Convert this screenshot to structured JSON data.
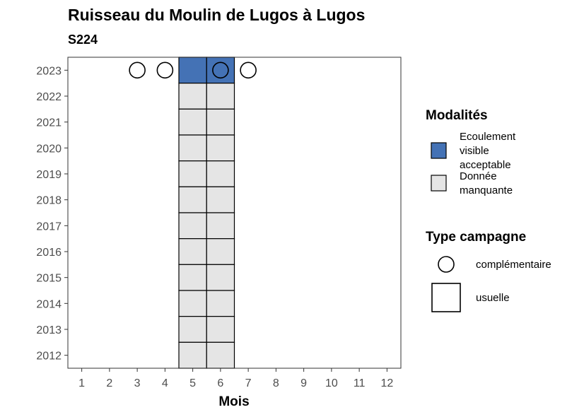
{
  "chart_data": {
    "type": "heatmap",
    "title": "Ruisseau du Moulin de Lugos à Lugos",
    "subtitle": "S224",
    "xlabel": "Mois",
    "ylabel": "",
    "x_ticks": [
      "1",
      "2",
      "3",
      "4",
      "5",
      "6",
      "7",
      "8",
      "9",
      "10",
      "11",
      "12"
    ],
    "y_ticks": [
      "2012",
      "2013",
      "2014",
      "2015",
      "2016",
      "2017",
      "2018",
      "2019",
      "2020",
      "2021",
      "2022",
      "2023"
    ],
    "xlim": [
      0.5,
      12.5
    ],
    "ylim": [
      2011.5,
      2023.5
    ],
    "grid": false,
    "legend_position": "right",
    "modalites": {
      "title": "Modalités",
      "items": [
        {
          "label_lines": [
            "Ecoulement",
            "visible",
            "acceptable"
          ],
          "color": "#4472b5"
        },
        {
          "label_lines": [
            "Donnée",
            "manquante"
          ],
          "color": "#e5e5e5"
        }
      ]
    },
    "type_campagne": {
      "title": "Type campagne",
      "items": [
        {
          "label": "complémentaire",
          "shape": "circle"
        },
        {
          "label": "usuelle",
          "shape": "square"
        }
      ]
    },
    "tiles": [
      {
        "month": 5,
        "year": 2023,
        "modalite": 0
      },
      {
        "month": 6,
        "year": 2023,
        "modalite": 0
      },
      {
        "month": 5,
        "year": 2022,
        "modalite": 1
      },
      {
        "month": 6,
        "year": 2022,
        "modalite": 1
      },
      {
        "month": 5,
        "year": 2021,
        "modalite": 1
      },
      {
        "month": 6,
        "year": 2021,
        "modalite": 1
      },
      {
        "month": 5,
        "year": 2020,
        "modalite": 1
      },
      {
        "month": 6,
        "year": 2020,
        "modalite": 1
      },
      {
        "month": 5,
        "year": 2019,
        "modalite": 1
      },
      {
        "month": 6,
        "year": 2019,
        "modalite": 1
      },
      {
        "month": 5,
        "year": 2018,
        "modalite": 1
      },
      {
        "month": 6,
        "year": 2018,
        "modalite": 1
      },
      {
        "month": 5,
        "year": 2017,
        "modalite": 1
      },
      {
        "month": 6,
        "year": 2017,
        "modalite": 1
      },
      {
        "month": 5,
        "year": 2016,
        "modalite": 1
      },
      {
        "month": 6,
        "year": 2016,
        "modalite": 1
      },
      {
        "month": 5,
        "year": 2015,
        "modalite": 1
      },
      {
        "month": 6,
        "year": 2015,
        "modalite": 1
      },
      {
        "month": 5,
        "year": 2014,
        "modalite": 1
      },
      {
        "month": 6,
        "year": 2014,
        "modalite": 1
      },
      {
        "month": 5,
        "year": 2013,
        "modalite": 1
      },
      {
        "month": 6,
        "year": 2013,
        "modalite": 1
      },
      {
        "month": 5,
        "year": 2012,
        "modalite": 1
      },
      {
        "month": 6,
        "year": 2012,
        "modalite": 1
      }
    ],
    "points": [
      {
        "month": 3,
        "year": 2023,
        "campagne": "complémentaire"
      },
      {
        "month": 4,
        "year": 2023,
        "campagne": "complémentaire"
      },
      {
        "month": 6,
        "year": 2023,
        "campagne": "complémentaire"
      },
      {
        "month": 7,
        "year": 2023,
        "campagne": "complémentaire"
      }
    ]
  }
}
